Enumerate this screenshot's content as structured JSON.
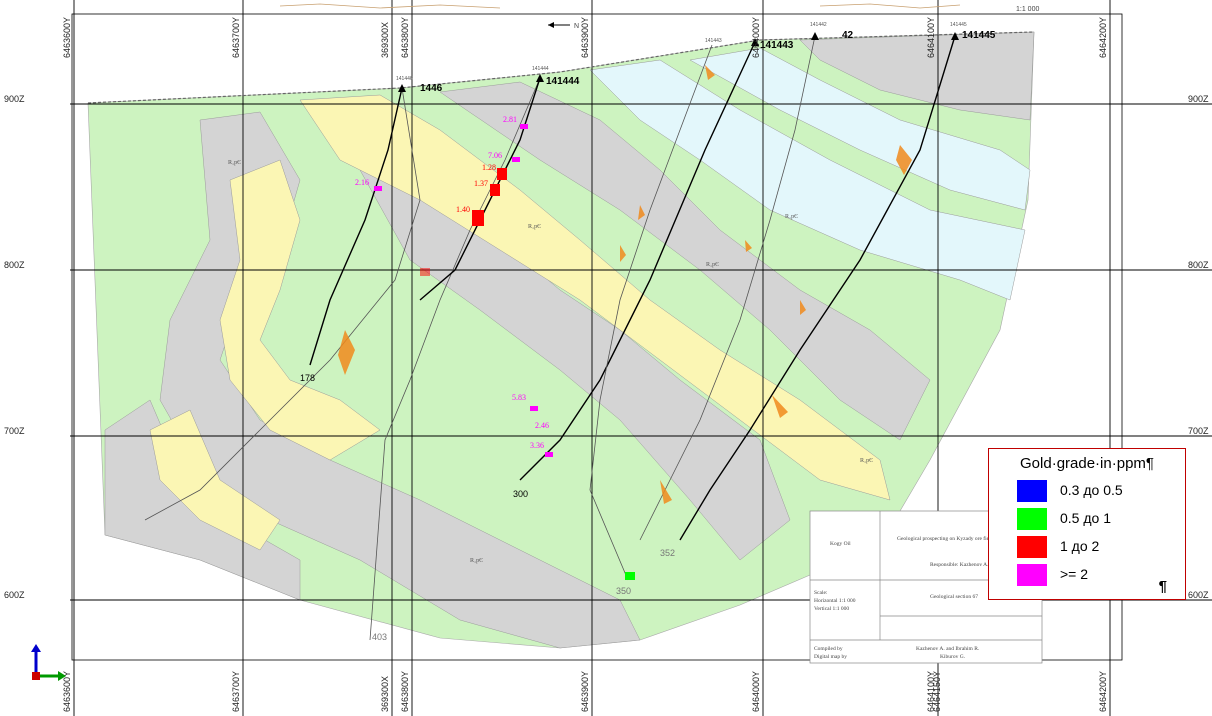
{
  "scale_top": "1:1 000",
  "north_arrow_label": "N",
  "y_grid_labels": [
    "6463600Y",
    "6463700Y",
    "369300X",
    "6463800Y",
    "6463900Y",
    "6464000Y",
    "6464100Y",
    "6464200Y"
  ],
  "bottom_labels": [
    "6463600Y",
    "6463700Y",
    "369300X",
    "6463800Y",
    "6463900Y",
    "6464000Y",
    "6464100Y",
    "6464150Y",
    "6464200Y"
  ],
  "z_labels": [
    "900Z",
    "800Z",
    "700Z",
    "600Z"
  ],
  "holes": [
    {
      "id": "141446",
      "label": "1446",
      "sub": "141446"
    },
    {
      "id": "141444",
      "label": "141444",
      "sub": "141444"
    },
    {
      "id": "141443",
      "label": "141443",
      "sub": "141443"
    },
    {
      "id": "141442",
      "label": "141442",
      "sub": "141442"
    },
    {
      "id": "141445",
      "label": "141445",
      "sub": "141445"
    }
  ],
  "hole_depths": [
    "178",
    "300",
    "350",
    "352",
    "403"
  ],
  "grade_labels": [
    "2.16",
    "1.28",
    "1.37",
    "1.40",
    "7.06",
    "2.81",
    "5.83",
    "2.46",
    "3.36"
  ],
  "unit_labels": [
    "R₁pЄ",
    "R₁pЄ",
    "R₁pЄ",
    "R₁pЄ",
    "R₁pЄ",
    "R₁pЄ"
  ],
  "title_block": {
    "company": "Kogy Oil",
    "project": "Geological prospecting on Kyzady ore field",
    "responsible": "Responsible: Kazhenov A.",
    "scale_label": "Scale:",
    "scale_h": "Horizontal 1:1 000",
    "scale_v": "Vertical 1:1 000",
    "section": "Geological section 67",
    "compiled_label": "Compiled by",
    "digital_label": "Digital map by",
    "compiled_by": "Kazhenov A. and Ibrahim R.",
    "digital_by": "Kiburov G."
  },
  "legend": {
    "title": "Gold·grade·in·ppm¶",
    "items": [
      {
        "label": "0.3 до 0.5",
        "color": "#0000ff"
      },
      {
        "label": "0.5 до 1",
        "color": "#00ff00"
      },
      {
        "label": "1 до 2",
        "color": "#ff0000"
      },
      {
        "label": ">= 2",
        "color": "#ff00ff"
      }
    ],
    "pilcrow": "¶"
  },
  "colors": {
    "green_unit": "#cdf3c0",
    "yellow_unit": "#fbf6b4",
    "grey_unit": "#d4d4d4",
    "cyan_unit": "#e3f7fb",
    "grid": "#000000",
    "ore_orange": "#f08a1c",
    "grade_red": "#ff0000",
    "grade_magenta": "#ff00ff"
  }
}
